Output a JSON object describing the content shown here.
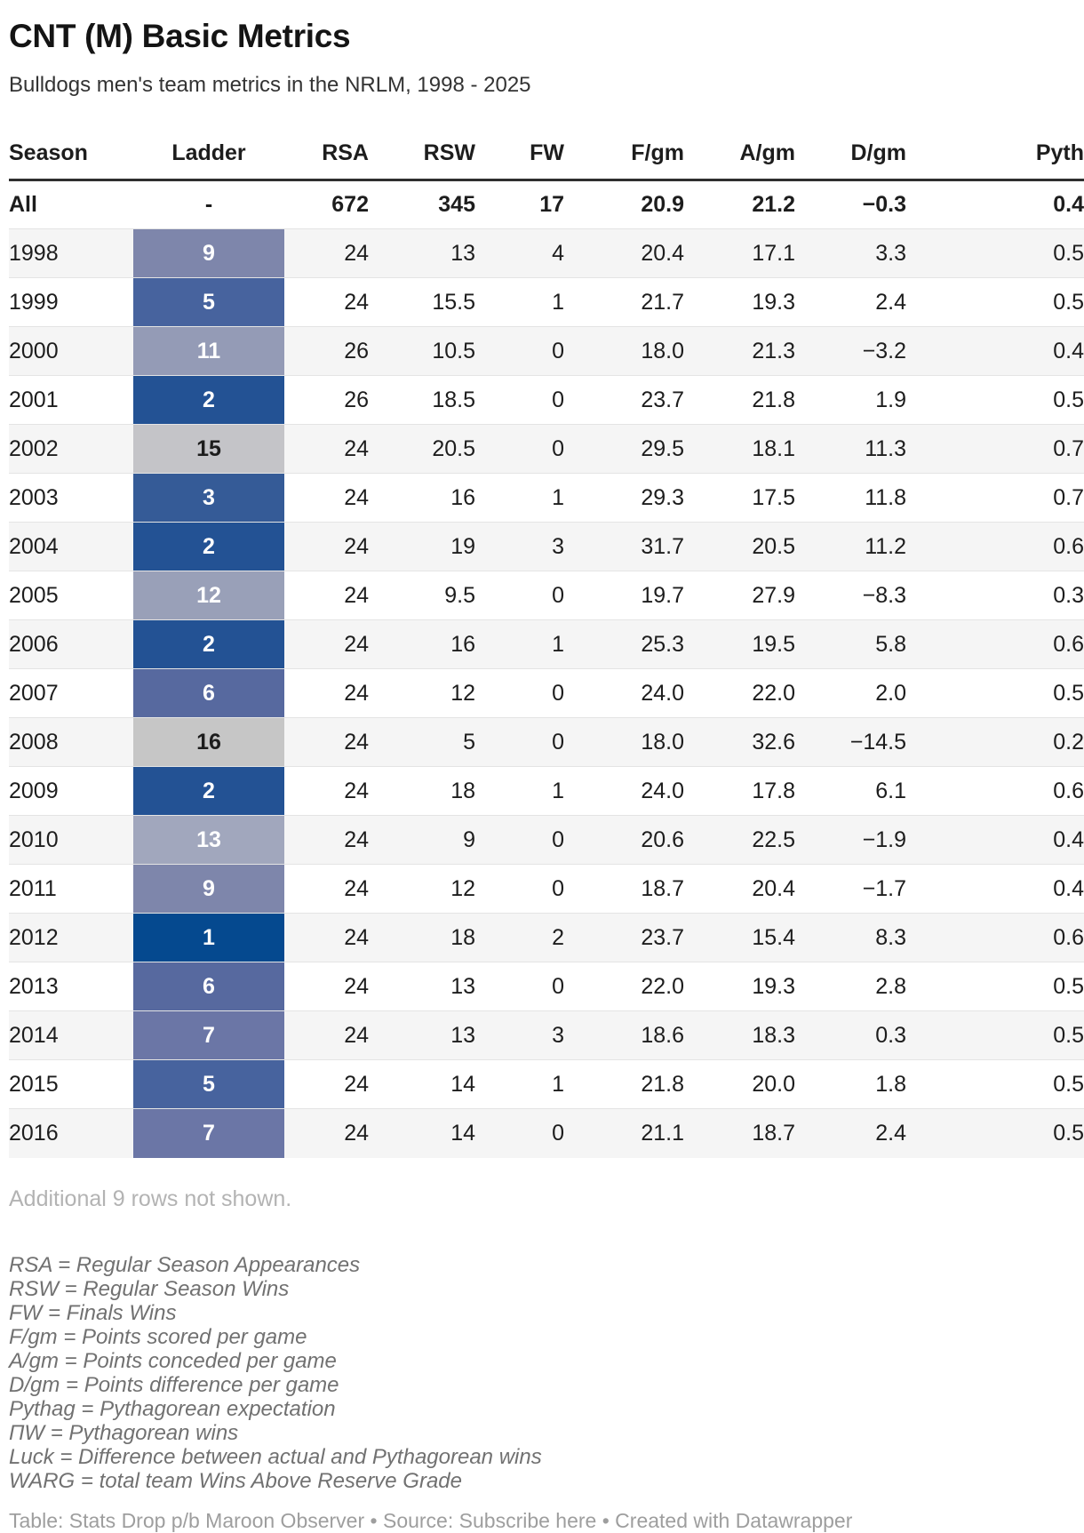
{
  "header": {
    "title": "CNT (M) Basic Metrics",
    "subtitle": "Bulldogs men's team metrics in the NRLM, 1998 - 2025"
  },
  "chart_data": {
    "type": "table",
    "title": "CNT (M) Basic Metrics",
    "subtitle": "Bulldogs men's team metrics in the NRLM, 1998 - 2025",
    "columns": [
      "Season",
      "Ladder",
      "RSA",
      "RSW",
      "FW",
      "F/gm",
      "A/gm",
      "D/gm",
      "Pyth"
    ],
    "summary_row": [
      "All",
      "-",
      "672",
      "345",
      "17",
      "20.9",
      "21.2",
      "−0.3",
      "0.4"
    ],
    "rows": [
      [
        "1998",
        "9",
        "24",
        "13",
        "4",
        "20.4",
        "17.1",
        "3.3",
        "0.5"
      ],
      [
        "1999",
        "5",
        "24",
        "15.5",
        "1",
        "21.7",
        "19.3",
        "2.4",
        "0.5"
      ],
      [
        "2000",
        "11",
        "26",
        "10.5",
        "0",
        "18.0",
        "21.3",
        "−3.2",
        "0.4"
      ],
      [
        "2001",
        "2",
        "26",
        "18.5",
        "0",
        "23.7",
        "21.8",
        "1.9",
        "0.5"
      ],
      [
        "2002",
        "15",
        "24",
        "20.5",
        "0",
        "29.5",
        "18.1",
        "11.3",
        "0.7"
      ],
      [
        "2003",
        "3",
        "24",
        "16",
        "1",
        "29.3",
        "17.5",
        "11.8",
        "0.7"
      ],
      [
        "2004",
        "2",
        "24",
        "19",
        "3",
        "31.7",
        "20.5",
        "11.2",
        "0.6"
      ],
      [
        "2005",
        "12",
        "24",
        "9.5",
        "0",
        "19.7",
        "27.9",
        "−8.3",
        "0.3"
      ],
      [
        "2006",
        "2",
        "24",
        "16",
        "1",
        "25.3",
        "19.5",
        "5.8",
        "0.6"
      ],
      [
        "2007",
        "6",
        "24",
        "12",
        "0",
        "24.0",
        "22.0",
        "2.0",
        "0.5"
      ],
      [
        "2008",
        "16",
        "24",
        "5",
        "0",
        "18.0",
        "32.6",
        "−14.5",
        "0.2"
      ],
      [
        "2009",
        "2",
        "24",
        "18",
        "1",
        "24.0",
        "17.8",
        "6.1",
        "0.6"
      ],
      [
        "2010",
        "13",
        "24",
        "9",
        "0",
        "20.6",
        "22.5",
        "−1.9",
        "0.4"
      ],
      [
        "2011",
        "9",
        "24",
        "12",
        "0",
        "18.7",
        "20.4",
        "−1.7",
        "0.4"
      ],
      [
        "2012",
        "1",
        "24",
        "18",
        "2",
        "23.7",
        "15.4",
        "8.3",
        "0.6"
      ],
      [
        "2013",
        "6",
        "24",
        "13",
        "0",
        "22.0",
        "19.3",
        "2.8",
        "0.5"
      ],
      [
        "2014",
        "7",
        "24",
        "13",
        "3",
        "18.6",
        "18.3",
        "0.3",
        "0.5"
      ],
      [
        "2015",
        "5",
        "24",
        "14",
        "1",
        "21.8",
        "20.0",
        "1.8",
        "0.5"
      ],
      [
        "2016",
        "7",
        "24",
        "14",
        "0",
        "21.1",
        "18.7",
        "2.4",
        "0.5"
      ]
    ],
    "ladder_colors": {
      "1": "#05498f",
      "2": "#235294",
      "3": "#355b97",
      "5": "#47639e",
      "6": "#57699f",
      "7": "#6b76a6",
      "9": "#7e86ab",
      "11": "#949bb6",
      "12": "#99a0b8",
      "13": "#a1a7bd",
      "15": "#c4c4c8",
      "16": "#c6c6c6"
    },
    "ladder_dark_text_values": [
      "15",
      "16"
    ],
    "row_stripe_color": "#f5f5f5",
    "legend_position": "none",
    "grid": "row-separators"
  },
  "notes": {
    "more_rows": "Additional 9 rows not shown.",
    "footnotes": [
      "RSA = Regular Season Appearances",
      "RSW = Regular Season Wins",
      "FW = Finals Wins",
      "F/gm = Points scored per game",
      "A/gm = Points conceded per game",
      "D/gm = Points difference per game",
      "Pythag = Pythagorean expectation",
      "ΠW = Pythagorean wins",
      "Luck = Difference between actual and Pythagorean wins",
      "WARG = total team Wins Above Reserve Grade"
    ]
  },
  "caption": {
    "table_credit": "Table: Stats Drop p/b Maroon Observer",
    "sep1": " • Source: ",
    "source_link": "Subscribe here",
    "sep2": " • Created with ",
    "created_link": "Datawrapper"
  }
}
